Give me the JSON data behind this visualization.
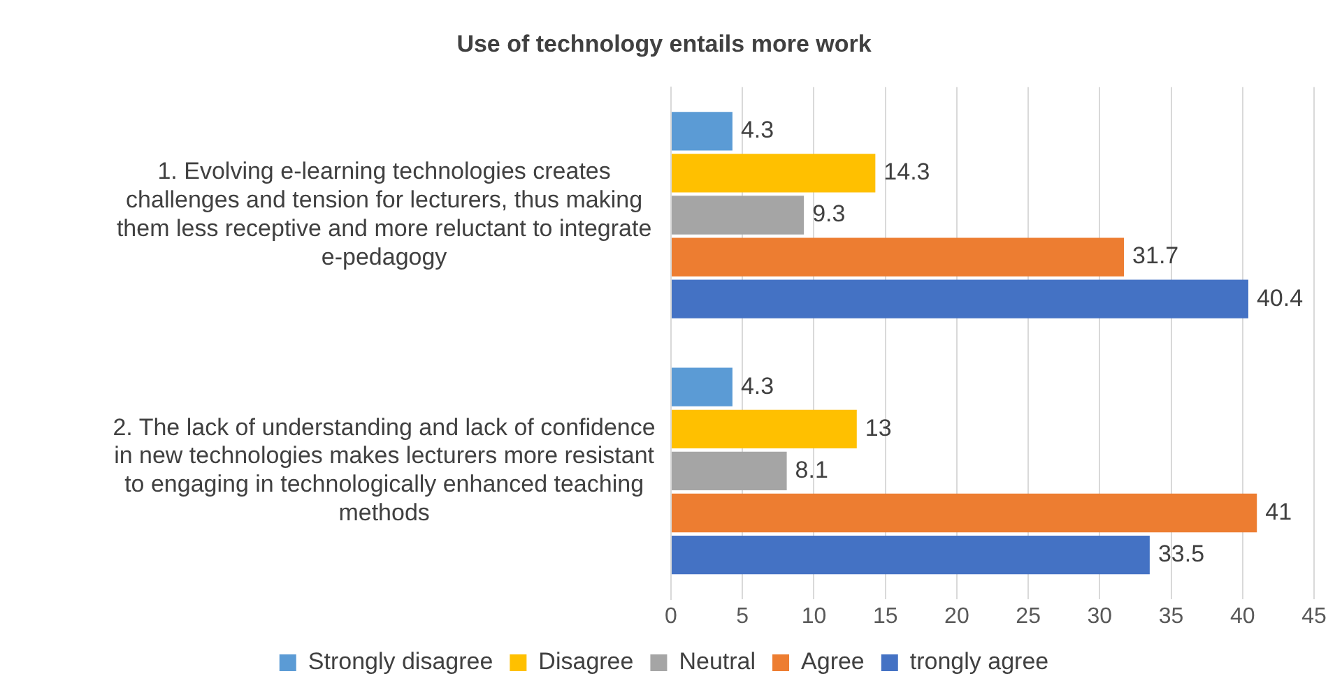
{
  "chart_data": {
    "type": "bar",
    "orientation": "horizontal",
    "title": "Use of technology entails more work",
    "categories": [
      "1. Evolving e-learning technologies creates challenges and tension for lecturers, thus making them less receptive and more reluctant to integrate e-pedagogy",
      "2. The lack of understanding and lack of confidence in new technologies makes lecturers more resistant to engaging in technologically enhanced teaching methods"
    ],
    "series": [
      {
        "name": "Strongly disagree",
        "color": "#5b9bd5",
        "values": [
          4.3,
          4.3
        ]
      },
      {
        "name": "Disagree",
        "color": "#ffc000",
        "values": [
          14.3,
          13
        ]
      },
      {
        "name": "Neutral",
        "color": "#a5a5a5",
        "values": [
          9.3,
          8.1
        ]
      },
      {
        "name": "Agree",
        "color": "#ed7d31",
        "values": [
          31.7,
          41
        ]
      },
      {
        "name": "trongly agree",
        "color": "#4472c4",
        "values": [
          40.4,
          33.5
        ]
      }
    ],
    "xlim": [
      0,
      45
    ],
    "xticks": [
      0,
      5,
      10,
      15,
      20,
      25,
      30,
      35,
      40,
      45
    ],
    "grid": "x",
    "legend": "bottom",
    "data_labels": true
  }
}
